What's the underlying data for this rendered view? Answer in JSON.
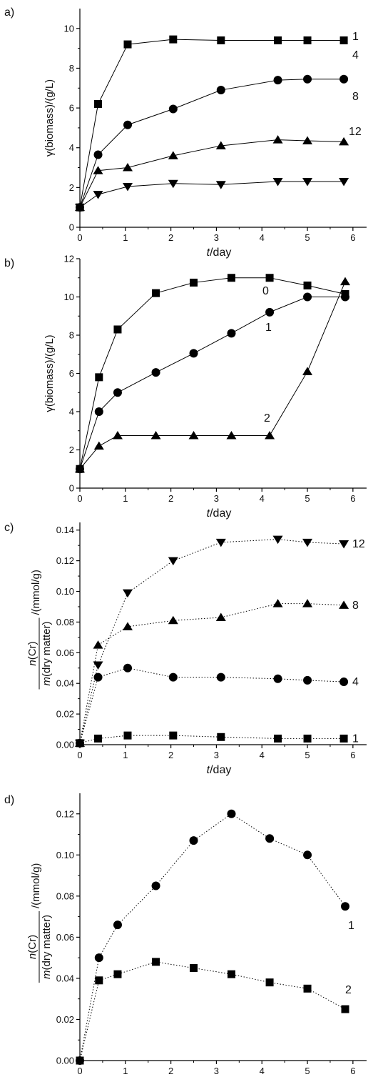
{
  "chart_data": [
    {
      "type": "line",
      "panel_label": "a)",
      "xlabel_italic": "t",
      "xlabel_rest": "/day",
      "ylabel": "γ(biomass)/(g/L)",
      "xlim": [
        0,
        6.3
      ],
      "ylim": [
        0,
        11
      ],
      "xticks": [
        "0",
        "1",
        "2",
        "3",
        "4",
        "5",
        "6"
      ],
      "yticks": [
        "0",
        "2",
        "4",
        "6",
        "8",
        "10"
      ],
      "line_style": "solid",
      "series": [
        {
          "name": "1",
          "marker": "square",
          "x": [
            0,
            0.4,
            1.05,
            2.05,
            3.1,
            4.35,
            5.0,
            5.8
          ],
          "y": [
            1.0,
            6.2,
            9.2,
            9.45,
            9.4,
            9.4,
            9.4,
            9.4
          ]
        },
        {
          "name": "4",
          "marker": "circle",
          "x": [
            0,
            0.4,
            1.05,
            2.05,
            3.1,
            4.35,
            5.0,
            5.8
          ],
          "y": [
            1.0,
            3.65,
            5.15,
            5.95,
            6.9,
            7.4,
            7.45,
            7.45
          ]
        },
        {
          "name": "8",
          "marker": "triangle-up",
          "x": [
            0,
            0.4,
            1.05,
            2.05,
            3.1,
            4.35,
            5.0,
            5.8
          ],
          "y": [
            1.0,
            2.85,
            3.0,
            3.6,
            4.1,
            4.4,
            4.35,
            4.3
          ]
        },
        {
          "name": "12",
          "marker": "triangle-down",
          "x": [
            0,
            0.4,
            1.05,
            2.05,
            3.1,
            4.35,
            5.0,
            5.8
          ],
          "y": [
            1.0,
            1.65,
            2.05,
            2.2,
            2.15,
            2.3,
            2.3,
            2.3
          ]
        }
      ]
    },
    {
      "type": "line",
      "panel_label": "b)",
      "xlabel_italic": "t",
      "xlabel_rest": "/day",
      "ylabel": "γ(biomass)/(g/L)",
      "xlim": [
        0,
        6.3
      ],
      "ylim": [
        0,
        12
      ],
      "xticks": [
        "0",
        "1",
        "2",
        "3",
        "4",
        "5",
        "6"
      ],
      "yticks": [
        "0",
        "2",
        "4",
        "6",
        "8",
        "10",
        "12"
      ],
      "line_style": "solid",
      "series": [
        {
          "name": "0",
          "marker": "square",
          "x": [
            0,
            0.42,
            0.83,
            1.67,
            2.5,
            3.33,
            4.17,
            5.0,
            5.83
          ],
          "y": [
            1.0,
            5.8,
            8.3,
            10.2,
            10.75,
            11.0,
            11.0,
            10.6,
            10.15
          ]
        },
        {
          "name": "1",
          "marker": "circle",
          "x": [
            0,
            0.42,
            0.83,
            1.67,
            2.5,
            3.33,
            4.17,
            5.0,
            5.83
          ],
          "y": [
            1.0,
            4.0,
            5.0,
            6.05,
            7.05,
            8.1,
            9.2,
            10.0,
            10.0
          ]
        },
        {
          "name": "2",
          "marker": "triangle-up",
          "x": [
            0,
            0.42,
            0.83,
            1.67,
            2.5,
            3.33,
            4.17,
            5.0,
            5.83
          ],
          "y": [
            1.0,
            2.2,
            2.75,
            2.75,
            2.75,
            2.75,
            2.75,
            6.1,
            10.8
          ]
        }
      ]
    },
    {
      "type": "line",
      "panel_label": "c)",
      "xlabel_italic": "t",
      "xlabel_rest": "/day",
      "ylabel_numerator": "n(Cr)",
      "ylabel_denominator": "m(dry matter)",
      "ylabel_unit": "/(mmol/g)",
      "xlim": [
        0,
        6.3
      ],
      "ylim": [
        0,
        0.145
      ],
      "xticks": [
        "0",
        "1",
        "2",
        "3",
        "4",
        "5",
        "6"
      ],
      "yticks": [
        "0.00",
        "0.02",
        "0.04",
        "0.06",
        "0.08",
        "0.10",
        "0.12",
        "0.14"
      ],
      "line_style": "dotted",
      "series": [
        {
          "name": "1",
          "marker": "square",
          "x": [
            0,
            0.4,
            1.05,
            2.05,
            3.1,
            4.35,
            5.0,
            5.8
          ],
          "y": [
            0.001,
            0.004,
            0.006,
            0.006,
            0.005,
            0.004,
            0.004,
            0.004
          ]
        },
        {
          "name": "4",
          "marker": "circle",
          "x": [
            0,
            0.4,
            1.05,
            2.05,
            3.1,
            4.35,
            5.0,
            5.8
          ],
          "y": [
            0.001,
            0.044,
            0.05,
            0.044,
            0.044,
            0.043,
            0.042,
            0.041
          ]
        },
        {
          "name": "8",
          "marker": "triangle-up",
          "x": [
            0,
            0.4,
            1.05,
            2.05,
            3.1,
            4.35,
            5.0,
            5.8
          ],
          "y": [
            0.001,
            0.065,
            0.077,
            0.081,
            0.083,
            0.092,
            0.092,
            0.091
          ]
        },
        {
          "name": "12",
          "marker": "triangle-down",
          "x": [
            0,
            0.4,
            1.05,
            2.05,
            3.1,
            4.35,
            5.0,
            5.8
          ],
          "y": [
            0.001,
            0.052,
            0.099,
            0.12,
            0.132,
            0.134,
            0.132,
            0.131
          ]
        }
      ]
    },
    {
      "type": "line",
      "panel_label": "d)",
      "xlabel_italic": "t",
      "xlabel_rest": "/day",
      "ylabel_numerator": "n(Cr)",
      "ylabel_denominator": "m(dry matter)",
      "ylabel_unit": "/(mmol/g)",
      "xlim": [
        0,
        6.3
      ],
      "ylim": [
        0,
        0.13
      ],
      "xticks": [
        "0",
        "1",
        "2",
        "3",
        "4",
        "5",
        "6"
      ],
      "yticks": [
        "0.00",
        "0.02",
        "0.04",
        "0.06",
        "0.08",
        "0.10",
        "0.12"
      ],
      "line_style": "dotted",
      "series": [
        {
          "name": "1",
          "marker": "square",
          "x": [
            0,
            0.42,
            0.83,
            1.67,
            2.5,
            3.33,
            4.17,
            5.0,
            5.83
          ],
          "y": [
            0,
            0.039,
            0.042,
            0.048,
            0.045,
            0.042,
            0.038,
            0.035,
            0.025
          ]
        },
        {
          "name": "2",
          "marker": "circle",
          "x": [
            0,
            0.42,
            0.83,
            1.67,
            2.5,
            3.33,
            4.17,
            5.0,
            5.83
          ],
          "y": [
            0,
            0.05,
            0.066,
            0.085,
            0.107,
            0.12,
            0.108,
            0.1,
            0.075
          ]
        }
      ]
    }
  ]
}
